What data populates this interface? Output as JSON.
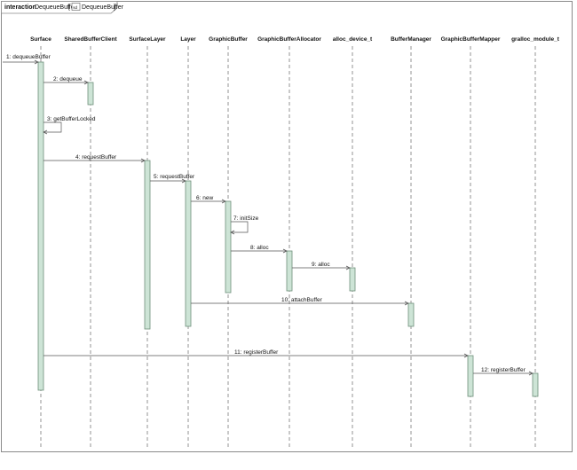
{
  "frame": {
    "keyword": "interaction",
    "name": "DequeueBuffer",
    "ref_icon": "sd",
    "ref_name": "DequeueBuffer"
  },
  "lifelines": [
    "Surface",
    "SharedBufferClient",
    "SurfaceLayer",
    "Layer",
    "GraphicBuffer",
    "GraphicBufferAllocator",
    "alloc_device_t",
    "BufferManager",
    "GraphicBufferMapper",
    "gralloc_module_t"
  ],
  "messages": [
    "1: dequeueBuffer",
    "2: dequeue",
    "3: getBufferLocked",
    "4: requestBuffer",
    "5: requestBuffer",
    "6: new",
    "7: initSize",
    "8: alloc",
    "9: alloc",
    "10: attachBuffer",
    "11: registerBuffer",
    "12: registerBuffer"
  ],
  "colors": {
    "activation_fill": "#cde4d6",
    "activation_stroke": "#6f8f7a",
    "line": "#555555",
    "frame": "#8a8a8a"
  }
}
